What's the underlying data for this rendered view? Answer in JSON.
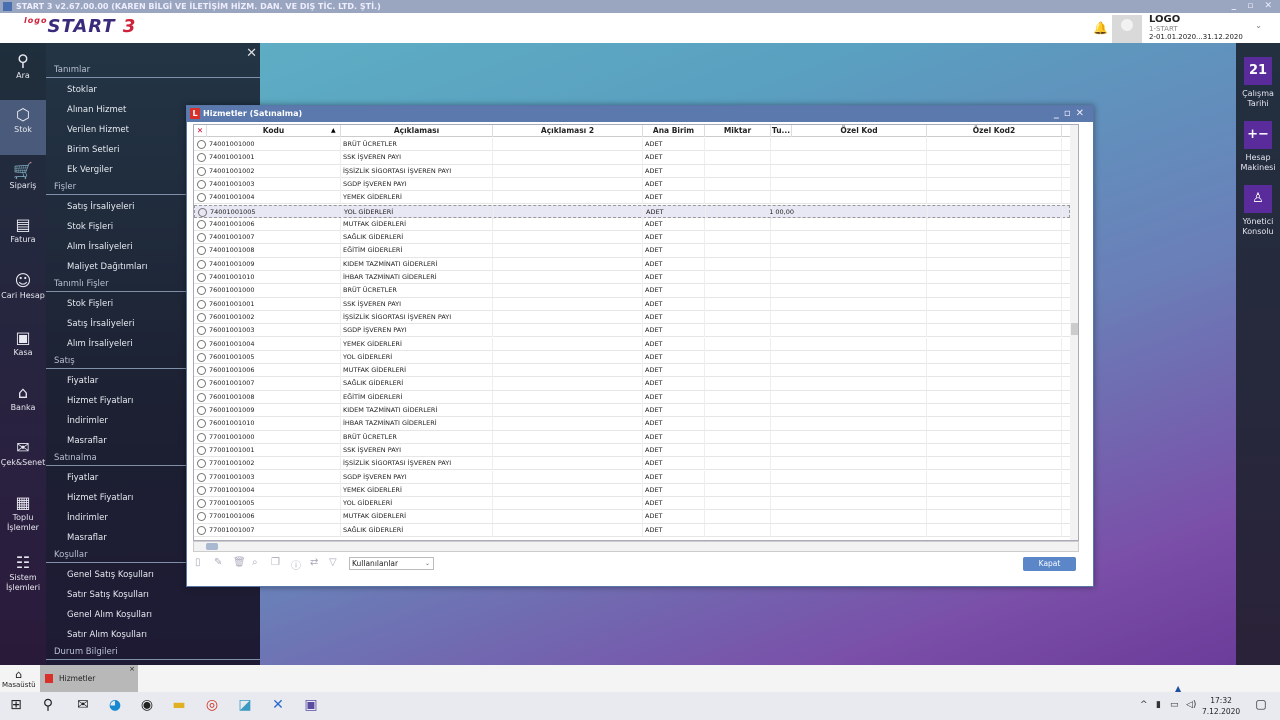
{
  "app": {
    "title": "START 3 v2.67.00.00 (KAREN BİLGİ VE İLETİŞİM HİZM. DAN. VE DIŞ TİC. LTD. ŞTİ.)",
    "logo": "logo START 3"
  },
  "user": {
    "name": "LOGO",
    "firm": "1-START",
    "period": "2-01.01.2020...31.12.2020"
  },
  "rail": [
    {
      "label": "Ara",
      "icon": "search-icon",
      "g": "⚲"
    },
    {
      "label": "Stok",
      "icon": "box-icon",
      "g": "⬡",
      "active": true
    },
    {
      "label": "Sipariş",
      "icon": "cart-icon",
      "g": "🛒"
    },
    {
      "label": "Fatura",
      "icon": "invoice-icon",
      "g": "▤"
    },
    {
      "label": "Cari Hesap",
      "icon": "person-icon",
      "g": "☺"
    },
    {
      "label": "Kasa",
      "icon": "safe-icon",
      "g": "▣"
    },
    {
      "label": "Banka",
      "icon": "bank-icon",
      "g": "⌂"
    },
    {
      "label": "Çek&Senet",
      "icon": "check-icon",
      "g": "✉"
    },
    {
      "label": "Toplu İşlemler",
      "icon": "grid-icon",
      "g": "▦"
    },
    {
      "label": "Sistem İşlemleri",
      "icon": "network-icon",
      "g": "☷"
    }
  ],
  "menu": {
    "sections": [
      {
        "title": "Tanımlar",
        "items": [
          "Stoklar",
          "Alınan Hizmet",
          "Verilen Hizmet",
          "Birim Setleri",
          "Ek Vergiler"
        ]
      },
      {
        "title": "Fişler",
        "items": [
          "Satış İrsaliyeleri",
          "Stok Fişleri",
          "Alım İrsaliyeleri",
          "Maliyet Dağıtımları"
        ]
      },
      {
        "title": "Tanımlı Fişler",
        "items": [
          "Stok Fişleri",
          "Satış İrsaliyeleri",
          "Alım İrsaliyeleri"
        ]
      },
      {
        "title": "Satış",
        "items": [
          "Fiyatlar",
          "Hizmet Fiyatları",
          "İndirimler",
          "Masraflar"
        ]
      },
      {
        "title": "Satınalma",
        "items": [
          "Fiyatlar",
          "Hizmet Fiyatları",
          "İndirimler",
          "Masraflar"
        ]
      },
      {
        "title": "Koşullar",
        "items": [
          "Genel Satış Koşulları",
          "Satır Satış Koşulları",
          "Genel Alım Koşulları",
          "Satır Alım Koşulları"
        ]
      },
      {
        "title": "Durum Bilgileri",
        "items": []
      }
    ]
  },
  "right_rail": [
    {
      "label": "Çalışma Tarihi",
      "g": "21",
      "icon": "calendar-icon"
    },
    {
      "label": "Hesap Makinesi",
      "g": "+−",
      "icon": "calculator-icon"
    },
    {
      "label": "Yönetici Konsolu",
      "g": "♙",
      "icon": "admin-console-icon"
    }
  ],
  "window": {
    "title": "Hizmetler (Satınalma)",
    "columns": [
      "Kodu",
      "Açıklaması",
      "Açıklaması 2",
      "Ana Birim",
      "Miktar",
      "Tu...",
      "Özel Kod",
      "Özel Kod2"
    ],
    "rows": [
      [
        "74001001000",
        "BRÜT ÜCRETLER",
        "",
        "ADET",
        "",
        ""
      ],
      [
        "74001001001",
        "SSK İŞVEREN PAYI",
        "",
        "ADET",
        "",
        ""
      ],
      [
        "74001001002",
        "İŞSİZLİK SİGORTASI İŞVEREN PAYI",
        "",
        "ADET",
        "",
        ""
      ],
      [
        "74001001003",
        "SGDP İŞVEREN PAYI",
        "",
        "ADET",
        "",
        ""
      ],
      [
        "74001001004",
        "YEMEK GİDERLERİ",
        "",
        "ADET",
        "",
        ""
      ],
      [
        "74001001005",
        "YOL GİDERLERİ",
        "",
        "ADET",
        "",
        "1 00,00"
      ],
      [
        "74001001006",
        "MUTFAK GİDERLERİ",
        "",
        "ADET",
        "",
        ""
      ],
      [
        "74001001007",
        "SAĞLIK GİDERLERİ",
        "",
        "ADET",
        "",
        ""
      ],
      [
        "74001001008",
        "EĞİTİM GİDERLERİ",
        "",
        "ADET",
        "",
        ""
      ],
      [
        "74001001009",
        "KIDEM TAZMİNATI GİDERLERİ",
        "",
        "ADET",
        "",
        ""
      ],
      [
        "74001001010",
        "İHBAR TAZMİNATI GİDERLERİ",
        "",
        "ADET",
        "",
        ""
      ],
      [
        "76001001000",
        "BRÜT ÜCRETLER",
        "",
        "ADET",
        "",
        ""
      ],
      [
        "76001001001",
        "SSK İŞVEREN PAYI",
        "",
        "ADET",
        "",
        ""
      ],
      [
        "76001001002",
        "İŞSİZLİK SİGORTASI İŞVEREN PAYI",
        "",
        "ADET",
        "",
        ""
      ],
      [
        "76001001003",
        "SGDP İŞVEREN PAYI",
        "",
        "ADET",
        "",
        ""
      ],
      [
        "76001001004",
        "YEMEK GİDERLERİ",
        "",
        "ADET",
        "",
        ""
      ],
      [
        "76001001005",
        "YOL GİDERLERİ",
        "",
        "ADET",
        "",
        ""
      ],
      [
        "76001001006",
        "MUTFAK GİDERLERİ",
        "",
        "ADET",
        "",
        ""
      ],
      [
        "76001001007",
        "SAĞLIK GİDERLERİ",
        "",
        "ADET",
        "",
        ""
      ],
      [
        "76001001008",
        "EĞİTİM GİDERLERİ",
        "",
        "ADET",
        "",
        ""
      ],
      [
        "76001001009",
        "KIDEM TAZMİNATI GİDERLERİ",
        "",
        "ADET",
        "",
        ""
      ],
      [
        "76001001010",
        "İHBAR TAZMİNATI GİDERLERİ",
        "",
        "ADET",
        "",
        ""
      ],
      [
        "77001001000",
        "BRÜT ÜCRETLER",
        "",
        "ADET",
        "",
        ""
      ],
      [
        "77001001001",
        "SSK İŞVEREN PAYI",
        "",
        "ADET",
        "",
        ""
      ],
      [
        "77001001002",
        "İŞSİZLİK SİGORTASI İŞVEREN PAYI",
        "",
        "ADET",
        "",
        ""
      ],
      [
        "77001001003",
        "SGDP İŞVEREN PAYI",
        "",
        "ADET",
        "",
        ""
      ],
      [
        "77001001004",
        "YEMEK GİDERLERİ",
        "",
        "ADET",
        "",
        ""
      ],
      [
        "77001001005",
        "YOL GİDERLERİ",
        "",
        "ADET",
        "",
        ""
      ],
      [
        "77001001006",
        "MUTFAK GİDERLERİ",
        "",
        "ADET",
        "",
        ""
      ],
      [
        "77001001007",
        "SAĞLIK GİDERLERİ",
        "",
        "ADET",
        "",
        ""
      ]
    ],
    "selected_row": 5,
    "filter": "Kullanılanlar",
    "close_label": "Kapat"
  },
  "apptabs": {
    "home": "Masaüstü",
    "tab": "Hizmetler (Satınalma"
  },
  "taskbar": {
    "time": "17:32",
    "date": "7.12.2020"
  }
}
